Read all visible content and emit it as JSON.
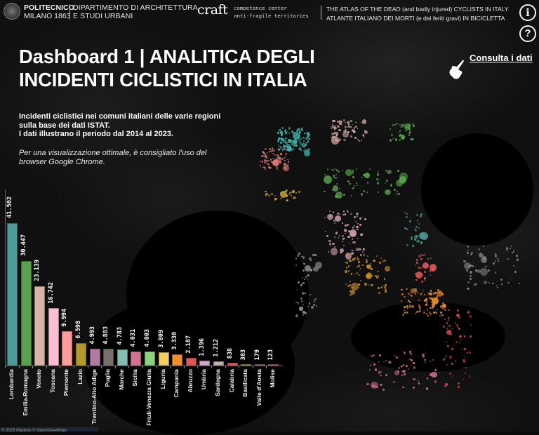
{
  "header": {
    "university_name": "POLITECNICO",
    "university_sub": "MILANO 1863",
    "department_line1": "DIPARTIMENTO DI ARCHITETTURA",
    "department_line2": "E STUDI URBANI",
    "craft_logo": "craft",
    "craft_sub_line1": "competence center",
    "craft_sub_line2": "anti-fragile territories",
    "atlas_line1": "THE ATLAS OF THE DEAD (and badly injured) CYCLISTS IN ITALY",
    "atlas_line2": "ATLANTE ITALIANO DEI MORTI (e dei feriti gravi) IN BICICLETTA",
    "info_icon": "i",
    "help_icon": "?"
  },
  "title_line1": "Dashboard 1 | ANALITICA DEGLI",
  "title_line2": "INCIDENTI CICLISTICI IN ITALIA",
  "consulta_link": "Consulta i dati",
  "description": {
    "line1": "Incidenti ciclistici nei comuni italiani delle varie regioni",
    "line2": "sulla base dei dati ISTAT.",
    "line3": "I dati illustrano il periodo dal 2014 al 2023.",
    "note_line1": "Per una visualizzazione ottimale, è consigliato l'uso del",
    "note_line2": "browser Google Chrome."
  },
  "attribution": "© 2025 Mapbox © OpenStreetMap",
  "chart_data": {
    "type": "bar",
    "title": "",
    "xlabel": "",
    "ylabel": "",
    "grid": false,
    "legend": "none",
    "ylim": [
      0,
      42000
    ],
    "categories": [
      "Lombardia",
      "Emilia-Romagna",
      "Veneto",
      "Toscana",
      "Piemonte",
      "Lazio",
      "Trentino-Alto Adige",
      "Puglia",
      "Marche",
      "Sicilia",
      "Friuli-Venezia Giulia",
      "Liguria",
      "Campania",
      "Abruzzo",
      "Umbria",
      "Sardegna",
      "Calabria",
      "Basilicata",
      "Valle d'Aosta",
      "Molise"
    ],
    "values": [
      41502,
      30447,
      23139,
      16742,
      9994,
      6598,
      4993,
      4883,
      4783,
      4031,
      4003,
      3809,
      3330,
      2187,
      1396,
      1212,
      838,
      303,
      179,
      123
    ],
    "value_labels": [
      "41.502",
      "30.447",
      "23.139",
      "16.742",
      "9.994",
      "6.598",
      "4.993",
      "4.883",
      "4.783",
      "4.031",
      "4.003",
      "3.809",
      "3.330",
      "2.187",
      "1.396",
      "1.212",
      "838",
      "303",
      "179",
      "123"
    ],
    "colors": [
      "#4e9a97",
      "#59a14f",
      "#d7b5a6",
      "#fabfd2",
      "#ff9d9a",
      "#b6992d",
      "#b07aa1",
      "#79706e",
      "#86bcb6",
      "#d37295",
      "#8cd17d",
      "#f1ce63",
      "#f28e2b",
      "#e15759",
      "#d4a6c8",
      "#bab0ac",
      "#e15759",
      "#b6992d",
      "#9d7660",
      "#e15759"
    ]
  }
}
